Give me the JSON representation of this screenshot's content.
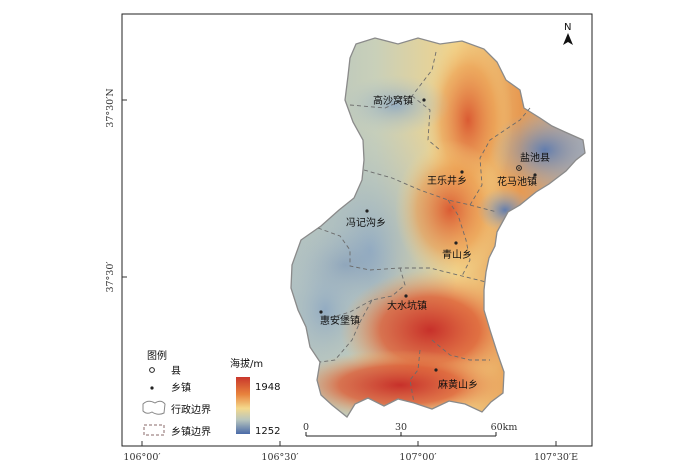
{
  "map": {
    "north_label": "N",
    "coords": {
      "top_left_lat": "37°30′N",
      "mid_left_lat": "37°30′",
      "bottom_lon": [
        "106°00′",
        "106°30′",
        "107°00′",
        "107°30′E"
      ]
    },
    "places": [
      {
        "name": "高沙窝镇",
        "kind": "town"
      },
      {
        "name": "盐池县",
        "kind": "county"
      },
      {
        "name": "王乐井乡",
        "kind": "town"
      },
      {
        "name": "花马池镇",
        "kind": "town"
      },
      {
        "name": "冯记沟乡",
        "kind": "town"
      },
      {
        "name": "青山乡",
        "kind": "town"
      },
      {
        "name": "大水坑镇",
        "kind": "town"
      },
      {
        "name": "惠安堡镇",
        "kind": "town"
      },
      {
        "name": "麻黄山乡",
        "kind": "town"
      }
    ],
    "legend": {
      "title": "图例",
      "county": "县",
      "town": "乡镇",
      "admin_boundary": "行政边界",
      "town_boundary": "乡镇边界"
    },
    "elevation": {
      "title": "海拔/m",
      "max": "1948",
      "min": "1252",
      "colors": [
        "#c9372c",
        "#e8823c",
        "#f4d98c",
        "#b9c6bd",
        "#4a6aa8"
      ]
    },
    "scalebar": {
      "ticks": [
        "0",
        "30",
        "60km"
      ]
    }
  }
}
